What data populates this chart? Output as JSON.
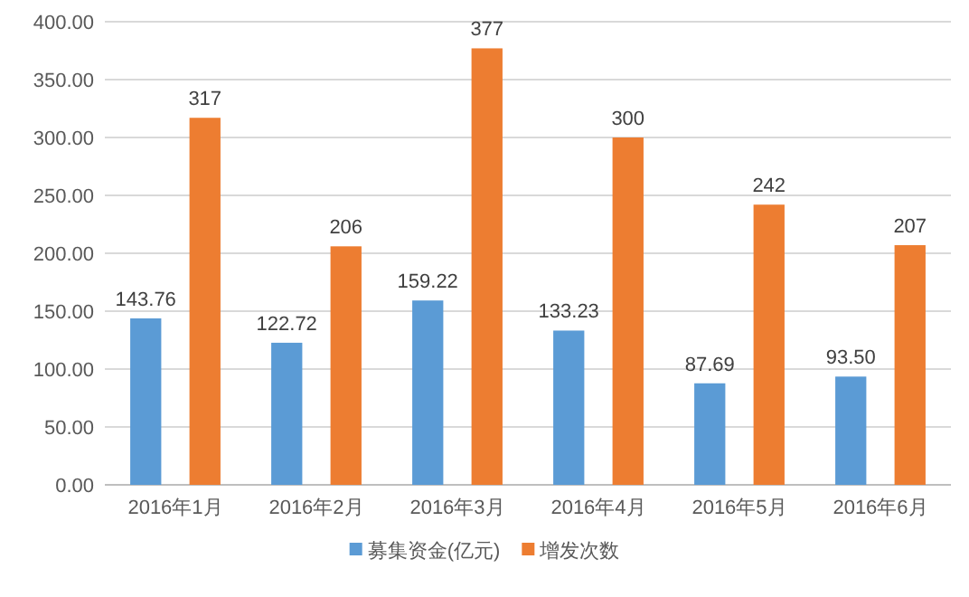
{
  "chart_data": {
    "type": "bar",
    "categories": [
      "2016年1月",
      "2016年2月",
      "2016年3月",
      "2016年4月",
      "2016年5月",
      "2016年6月"
    ],
    "series": [
      {
        "name": "募集资金(亿元)",
        "color": "#5b9bd5",
        "values": [
          143.76,
          122.72,
          159.22,
          133.23,
          87.69,
          93.5
        ],
        "value_labels": [
          "143.76",
          "122.72",
          "159.22",
          "133.23",
          "87.69",
          "93.50"
        ]
      },
      {
        "name": "增发次数",
        "color": "#ed7d31",
        "values": [
          317,
          206,
          377,
          300,
          242,
          207
        ],
        "value_labels": [
          "317",
          "206",
          "377",
          "300",
          "242",
          "207"
        ]
      }
    ],
    "ylim": [
      0,
      400
    ],
    "yticks": [
      {
        "value": 0,
        "label": "0.00"
      },
      {
        "value": 50,
        "label": "50.00"
      },
      {
        "value": 100,
        "label": "100.00"
      },
      {
        "value": 150,
        "label": "150.00"
      },
      {
        "value": 200,
        "label": "200.00"
      },
      {
        "value": 250,
        "label": "250.00"
      },
      {
        "value": 300,
        "label": "300.00"
      },
      {
        "value": 350,
        "label": "350.00"
      },
      {
        "value": 400,
        "label": "400.00"
      }
    ],
    "grid": "y",
    "legend": "bottom"
  }
}
